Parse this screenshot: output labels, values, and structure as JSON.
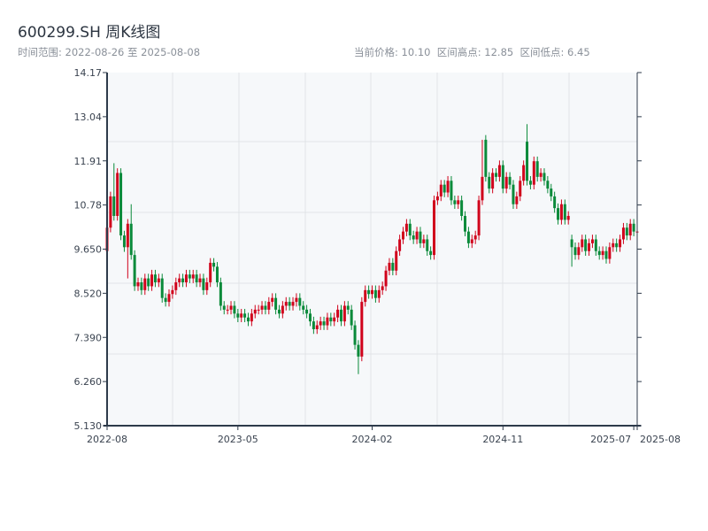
{
  "header": {
    "title": "600299.SH 周K线图",
    "range_text": "时间范围: 2022-08-26 至 2025-08-08",
    "stats_text": "当前价格: 10.10  区间高点: 12.85  区间低点: 6.45"
  },
  "chart_data": {
    "type": "candlestick",
    "title": "600299.SH 周K线图",
    "interval": "week",
    "start_date": "2022-08-26",
    "end_date": "2025-08-08",
    "ylim": [
      5.13,
      14.17
    ],
    "y_ticks": [
      "14.17",
      "13.04",
      "11.91",
      "10.78",
      "9.650",
      "8.520",
      "7.390",
      "6.260",
      "5.130"
    ],
    "x_ticks": [
      {
        "label": "2022-08",
        "index": 0
      },
      {
        "label": "2023-05",
        "index": 38
      },
      {
        "label": "2024-02",
        "index": 77
      },
      {
        "label": "2024-11",
        "index": 115
      },
      {
        "label": "2025-07",
        "index": 153
      },
      {
        "label": "2025-08",
        "index": 154
      }
    ],
    "colors": {
      "up": "#d0021b",
      "down": "#0a8a3a",
      "axis": "#2d3a4a",
      "grid": "#e1e4e8",
      "plot_bg": "#f6f8fa"
    },
    "open": [
      9.6,
      10.2,
      11.0,
      10.5,
      11.6,
      10.0,
      9.7,
      10.3,
      9.5,
      8.7,
      8.8,
      8.6,
      8.9,
      8.7,
      9.0,
      8.8,
      8.9,
      8.4,
      8.3,
      8.5,
      8.6,
      8.8,
      8.9,
      8.8,
      9.0,
      8.9,
      9.0,
      8.8,
      8.9,
      8.6,
      8.8,
      9.3,
      9.2,
      8.8,
      8.2,
      8.1,
      8.1,
      8.2,
      8.0,
      7.9,
      8.0,
      7.9,
      7.8,
      8.0,
      8.1,
      8.1,
      8.2,
      8.1,
      8.3,
      8.4,
      8.1,
      8.0,
      8.2,
      8.3,
      8.2,
      8.3,
      8.4,
      8.2,
      8.1,
      8.0,
      7.8,
      7.6,
      7.7,
      7.8,
      7.7,
      7.9,
      7.8,
      7.9,
      8.1,
      7.8,
      8.2,
      8.1,
      7.7,
      7.2,
      6.9,
      8.3,
      8.6,
      8.5,
      8.6,
      8.4,
      8.6,
      8.7,
      9.1,
      9.3,
      9.1,
      9.6,
      9.9,
      10.1,
      10.3,
      10.0,
      9.9,
      10.1,
      9.8,
      9.9,
      9.6,
      9.5,
      10.9,
      11.0,
      11.3,
      11.1,
      11.4,
      10.9,
      10.8,
      10.9,
      10.5,
      10.1,
      9.8,
      9.9,
      10.0,
      10.9,
      12.45,
      11.5,
      11.2,
      11.6,
      11.5,
      11.8,
      11.2,
      11.5,
      11.3,
      10.8,
      11.0,
      11.4,
      12.4,
      11.4,
      11.3,
      11.9,
      11.5,
      11.6,
      11.4,
      11.2,
      11.0,
      10.7,
      10.4,
      10.8,
      10.4,
      9.9,
      9.7,
      9.5,
      9.7,
      9.9,
      9.6,
      9.8,
      9.9,
      9.6,
      9.5,
      9.6,
      9.4,
      9.7,
      9.8,
      9.7,
      9.9,
      10.2,
      10.0,
      10.3,
      10.1
    ],
    "close": [
      10.2,
      11.0,
      10.5,
      11.6,
      10.0,
      9.7,
      10.3,
      9.5,
      8.7,
      8.8,
      8.6,
      8.9,
      8.7,
      9.0,
      8.8,
      8.9,
      8.4,
      8.3,
      8.5,
      8.6,
      8.8,
      8.9,
      8.8,
      9.0,
      8.9,
      9.0,
      8.8,
      8.9,
      8.6,
      8.8,
      9.3,
      9.2,
      8.8,
      8.2,
      8.1,
      8.1,
      8.2,
      8.0,
      7.9,
      8.0,
      7.9,
      7.8,
      8.0,
      8.1,
      8.1,
      8.2,
      8.1,
      8.3,
      8.4,
      8.1,
      8.0,
      8.2,
      8.3,
      8.2,
      8.3,
      8.4,
      8.2,
      8.1,
      8.0,
      7.8,
      7.6,
      7.7,
      7.8,
      7.7,
      7.9,
      7.8,
      7.9,
      8.1,
      7.8,
      8.2,
      8.1,
      7.7,
      7.2,
      6.9,
      8.3,
      8.6,
      8.5,
      8.6,
      8.4,
      8.6,
      8.7,
      9.1,
      9.3,
      9.1,
      9.6,
      9.9,
      10.1,
      10.3,
      10.0,
      9.9,
      10.1,
      9.8,
      9.9,
      9.6,
      9.5,
      10.9,
      11.0,
      11.3,
      11.1,
      11.4,
      10.9,
      10.8,
      10.9,
      10.5,
      10.1,
      9.8,
      9.9,
      10.0,
      10.9,
      11.5,
      11.5,
      11.2,
      11.6,
      11.5,
      11.8,
      11.2,
      11.5,
      11.3,
      10.8,
      11.0,
      11.4,
      11.8,
      11.4,
      11.3,
      11.9,
      11.5,
      11.6,
      11.4,
      11.2,
      11.0,
      10.7,
      10.4,
      10.8,
      10.4,
      10.5,
      9.7,
      9.5,
      9.7,
      9.9,
      9.6,
      9.8,
      9.9,
      9.6,
      9.5,
      9.6,
      9.4,
      9.7,
      9.8,
      9.7,
      9.9,
      10.2,
      10.0,
      10.3,
      10.1,
      10.1
    ],
    "wick_pad": 0.12,
    "high_overrides": {
      "2": 11.85,
      "7": 10.8,
      "122": 12.85,
      "109": 12.45
    },
    "low_overrides": {
      "6": 8.9,
      "73": 6.45,
      "135": 9.2
    }
  }
}
